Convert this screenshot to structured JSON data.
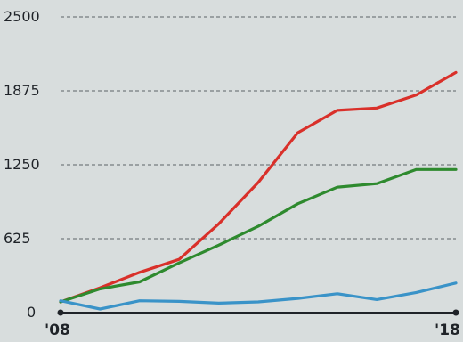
{
  "chart_data": {
    "type": "line",
    "xlabel": "",
    "ylabel": "",
    "ylim": [
      0,
      2500
    ],
    "yticks": [
      0,
      625,
      1250,
      1875,
      2500
    ],
    "ytick_labels": [
      "0",
      "625",
      "1250",
      "1875",
      "2500"
    ],
    "x": [
      2008,
      2009,
      2010,
      2011,
      2012,
      2013,
      2014,
      2015,
      2016,
      2017,
      2018
    ],
    "xtick_labels": [
      "'08",
      "'18"
    ],
    "grid": true,
    "series": [
      {
        "color": "#d9302a",
        "values": [
          90,
          210,
          340,
          450,
          750,
          1100,
          1520,
          1710,
          1730,
          1840,
          2030
        ]
      },
      {
        "color": "#2e8a2e",
        "values": [
          90,
          200,
          260,
          420,
          570,
          730,
          920,
          1060,
          1090,
          1210,
          1210
        ]
      },
      {
        "color": "#3a93c8",
        "values": [
          100,
          30,
          100,
          95,
          80,
          90,
          120,
          160,
          110,
          170,
          250
        ]
      }
    ]
  }
}
